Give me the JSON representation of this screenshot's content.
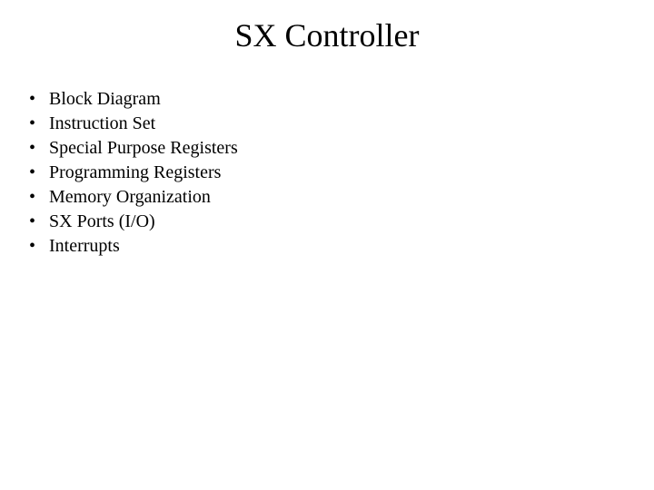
{
  "slide": {
    "title": "SX Controller",
    "title_fontsize": 36,
    "title_color": "#000000",
    "background_color": "#ffffff",
    "font_family": "Times New Roman",
    "bullet_char": "•",
    "items": [
      {
        "label": "Block Diagram"
      },
      {
        "label": "Instruction Set"
      },
      {
        "label": "Special Purpose Registers"
      },
      {
        "label": "Programming Registers"
      },
      {
        "label": "Memory Organization"
      },
      {
        "label": "SX Ports (I/O)"
      },
      {
        "label": "Interrupts"
      }
    ],
    "item_fontsize": 20,
    "item_color": "#000000"
  }
}
